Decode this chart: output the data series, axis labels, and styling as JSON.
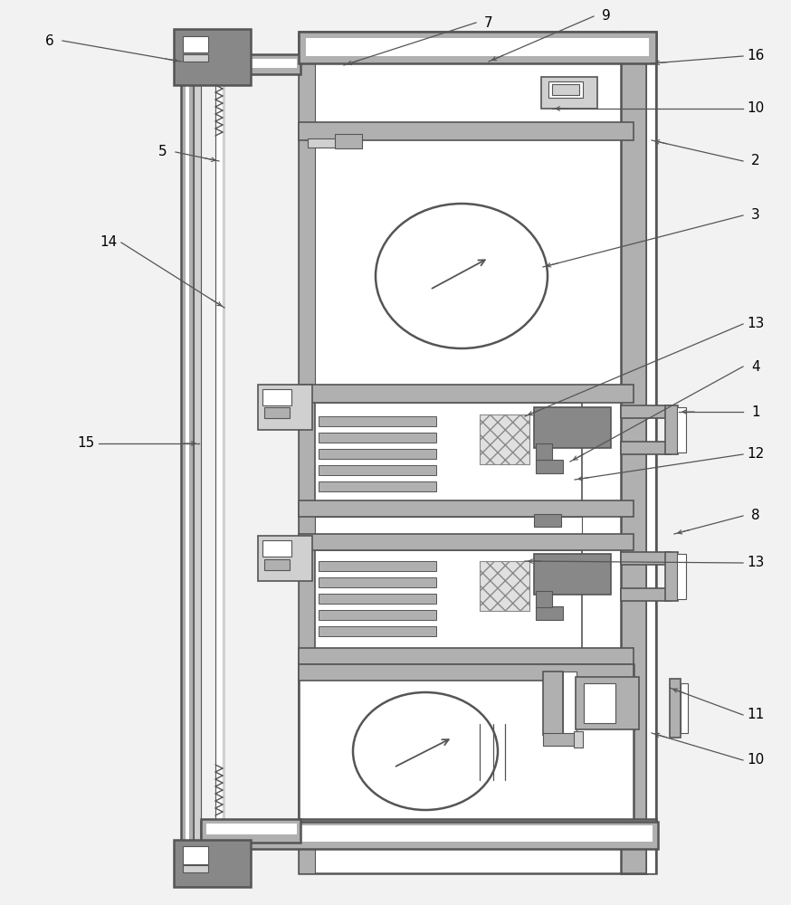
{
  "bg": "#f2f2f2",
  "lc": "#555555",
  "gray": "#b0b0b0",
  "dgray": "#888888",
  "lgray": "#d0d0d0",
  "white": "#ffffff",
  "annotations": [
    [
      "6",
      55,
      45,
      200,
      68
    ],
    [
      "5",
      180,
      168,
      242,
      178
    ],
    [
      "14",
      120,
      268,
      248,
      340
    ],
    [
      "15",
      95,
      490,
      220,
      490
    ],
    [
      "7",
      540,
      25,
      380,
      72
    ],
    [
      "9",
      670,
      18,
      540,
      68
    ],
    [
      "16",
      835,
      62,
      720,
      70
    ],
    [
      "10",
      835,
      120,
      610,
      120
    ],
    [
      "2",
      835,
      178,
      720,
      155
    ],
    [
      "3",
      835,
      238,
      600,
      295
    ],
    [
      "13",
      835,
      358,
      580,
      460
    ],
    [
      "4",
      835,
      405,
      630,
      510
    ],
    [
      "1",
      835,
      455,
      750,
      455
    ],
    [
      "12",
      835,
      502,
      635,
      530
    ],
    [
      "8",
      835,
      570,
      745,
      590
    ],
    [
      "13",
      835,
      622,
      580,
      620
    ],
    [
      "11",
      835,
      790,
      740,
      760
    ],
    [
      "10",
      835,
      840,
      720,
      810
    ]
  ]
}
